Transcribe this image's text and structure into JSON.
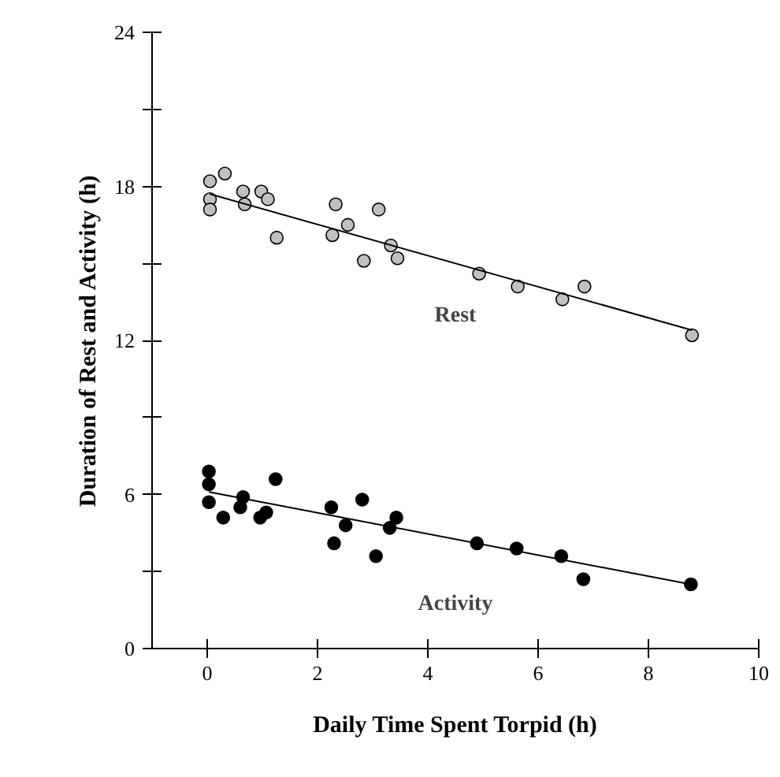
{
  "chart_data": {
    "type": "scatter",
    "xlabel": "Daily Time Spent Torpid (h)",
    "ylabel": "Duration of Rest and Activity (h)",
    "xlim": [
      -1,
      10
    ],
    "ylim": [
      0,
      24
    ],
    "xticks": [
      0,
      2,
      4,
      6,
      8,
      10
    ],
    "yticks": [
      0,
      {
        "value": 3,
        "label": null
      },
      6,
      {
        "value": 9,
        "label": null
      },
      12,
      {
        "value": 15,
        "label": null
      },
      18,
      {
        "value": 21,
        "label": null
      },
      24
    ],
    "grid": false,
    "marker": "circle",
    "series": [
      {
        "name": "Rest",
        "color": "#c0c0c0",
        "x": [
          0.05,
          0.32,
          0.05,
          0.05,
          0.65,
          0.68,
          0.98,
          1.1,
          1.26,
          2.33,
          2.27,
          2.55,
          3.11,
          2.84,
          3.33,
          3.45,
          4.93,
          5.63,
          6.44,
          6.84,
          8.79
        ],
        "values": [
          18.2,
          18.5,
          17.5,
          17.1,
          17.8,
          17.3,
          17.8,
          17.5,
          16.0,
          17.3,
          16.1,
          16.5,
          17.1,
          15.1,
          15.7,
          15.2,
          14.6,
          14.1,
          13.6,
          14.1,
          12.2
        ]
      },
      {
        "type": "line",
        "marker": "none",
        "color": "#000000",
        "x": [
          0.05,
          8.79
        ],
        "values": [
          17.7,
          12.4
        ]
      },
      {
        "name": "Activity",
        "color": "#000000",
        "x": [
          0.03,
          0.03,
          0.03,
          0.29,
          0.65,
          0.6,
          0.96,
          1.07,
          1.24,
          2.25,
          2.3,
          2.51,
          2.81,
          3.06,
          3.31,
          3.43,
          4.89,
          5.61,
          6.42,
          6.82,
          8.77
        ],
        "values": [
          6.9,
          6.4,
          5.7,
          5.1,
          5.9,
          5.5,
          5.1,
          5.3,
          6.6,
          5.5,
          4.1,
          4.8,
          5.8,
          3.6,
          4.7,
          5.1,
          4.1,
          3.9,
          3.6,
          2.7,
          2.5
        ]
      },
      {
        "type": "line",
        "marker": "none",
        "color": "#000000",
        "x": [
          0.03,
          8.77
        ],
        "values": [
          6.1,
          2.5
        ]
      }
    ]
  }
}
